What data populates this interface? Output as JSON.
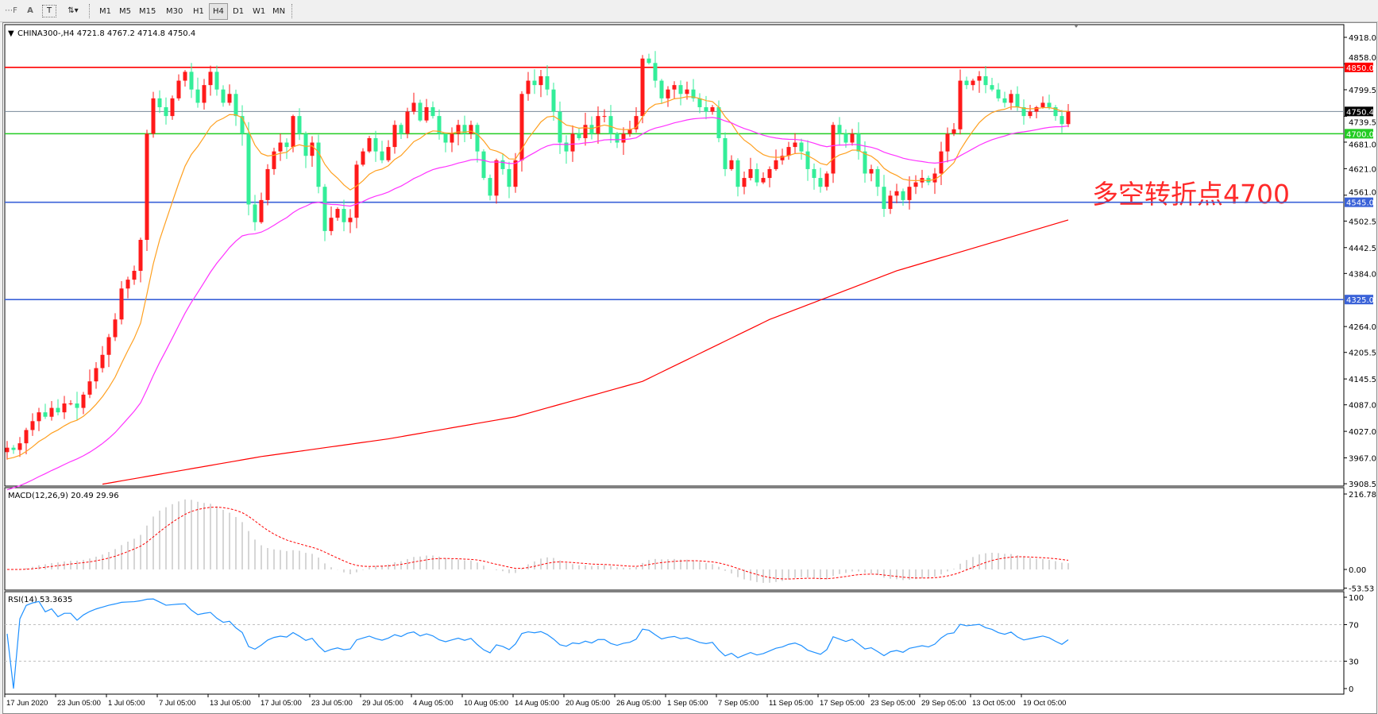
{
  "toolbar": {
    "tools": [
      {
        "name": "period-separator-tool",
        "glyph": "⋯F"
      },
      {
        "name": "text-tool",
        "glyph": "A"
      },
      {
        "name": "text-label-tool",
        "glyph": "T"
      },
      {
        "name": "arrows-tool",
        "glyph": "⇅▾"
      }
    ],
    "timeframes": [
      "M1",
      "M5",
      "M15",
      "M30",
      "H1",
      "H4",
      "D1",
      "W1",
      "MN"
    ],
    "selected_timeframe": "H4"
  },
  "chart": {
    "header": "CHINA300-,H4  4721.8 4767.2 4714.8 4750.4",
    "symbol": "CHINA300-",
    "timeframe": "H4",
    "ohlc": {
      "open": 4721.8,
      "high": 4767.2,
      "low": 4714.8,
      "close": 4750.4
    },
    "annotation": "多空转折点4700",
    "colors": {
      "bull": "#ff1a1a",
      "bear": "#33ee99",
      "ma_fast": "#ffa020",
      "ma_mid": "#ff33ff",
      "ma_slow": "#ff0000",
      "annotation": "#ff2a2a"
    }
  },
  "chart_data": [
    {
      "type": "candlestick",
      "title": "CHINA300-,H4",
      "ylim": [
        3908.5,
        4918.0
      ],
      "y_ticks": [
        "4918.0",
        "4858.0",
        "4799.5",
        "4739.5",
        "4681.0",
        "4621.0",
        "4561.0",
        "4502.5",
        "4442.5",
        "4384.0",
        "4264.0",
        "4205.5",
        "4145.5",
        "4087.0",
        "4027.0",
        "3967.0",
        "3908.5"
      ],
      "x_ticks": [
        "17 Jun 2020",
        "23 Jun 05:00",
        "1 Jul 05:00",
        "7 Jul 05:00",
        "13 Jul 05:00",
        "17 Jul 05:00",
        "23 Jul 05:00",
        "29 Jul 05:00",
        "4 Aug 05:00",
        "10 Aug 05:00",
        "14 Aug 05:00",
        "20 Aug 05:00",
        "26 Aug 05:00",
        "1 Sep 05:00",
        "7 Sep 05:00",
        "11 Sep 05:00",
        "17 Sep 05:00",
        "23 Sep 05:00",
        "29 Sep 05:00",
        "13 Oct 05:00",
        "19 Oct 05:00"
      ],
      "closes": [
        3990,
        3985,
        4000,
        4030,
        4050,
        4070,
        4060,
        4080,
        4070,
        4090,
        4090,
        4080,
        4110,
        4140,
        4170,
        4200,
        4240,
        4280,
        4350,
        4370,
        4390,
        4460,
        4700,
        4780,
        4760,
        4740,
        4780,
        4820,
        4840,
        4800,
        4770,
        4810,
        4840,
        4800,
        4770,
        4790,
        4740,
        4700,
        4540,
        4500,
        4550,
        4620,
        4660,
        4680,
        4670,
        4740,
        4700,
        4650,
        4680,
        4580,
        4480,
        4510,
        4530,
        4500,
        4510,
        4630,
        4660,
        4690,
        4660,
        4640,
        4670,
        4720,
        4700,
        4750,
        4770,
        4730,
        4760,
        4740,
        4700,
        4680,
        4700,
        4720,
        4700,
        4720,
        4660,
        4600,
        4560,
        4640,
        4620,
        4580,
        4640,
        4790,
        4820,
        4810,
        4830,
        4800,
        4750,
        4680,
        4660,
        4700,
        4690,
        4720,
        4700,
        4740,
        4740,
        4700,
        4680,
        4700,
        4710,
        4740,
        4870,
        4860,
        4820,
        4780,
        4800,
        4810,
        4790,
        4800,
        4780,
        4760,
        4750,
        4760,
        4690,
        4620,
        4640,
        4580,
        4600,
        4620,
        4590,
        4600,
        4620,
        4640,
        4650,
        4670,
        4680,
        4660,
        4620,
        4600,
        4580,
        4610,
        4720,
        4700,
        4680,
        4700,
        4660,
        4610,
        4620,
        4580,
        4530,
        4560,
        4570,
        4550,
        4580,
        4590,
        4600,
        4590,
        4610,
        4660,
        4700,
        4710,
        4820,
        4810,
        4820,
        4830,
        4810,
        4800,
        4780,
        4770,
        4790,
        4760,
        4740,
        4750,
        4760,
        4770,
        4760,
        4740,
        4721.8,
        4750.4
      ],
      "ma_slow_points": [
        [
          0,
          3870
        ],
        [
          40,
          3970
        ],
        [
          60,
          4010
        ],
        [
          80,
          4060
        ],
        [
          100,
          4140
        ],
        [
          120,
          4280
        ],
        [
          140,
          4390
        ],
        [
          167,
          4505
        ]
      ],
      "horizontal_lines": [
        {
          "value": 4850.0,
          "label": "4850.0",
          "color": "#ff0000"
        },
        {
          "value": 4750.4,
          "label": "4750.4",
          "color": "#778899",
          "current": true
        },
        {
          "value": 4700.0,
          "label": "4700.0",
          "color": "#22cc22"
        },
        {
          "value": 4545.0,
          "label": "4545.0",
          "color": "#3a62d8"
        },
        {
          "value": 4325.0,
          "label": "4325.0",
          "color": "#3a62d8"
        }
      ]
    },
    {
      "type": "bar",
      "title": "MACD(12,26,9) 20.49 29.96",
      "ylim": [
        -53.53,
        216.78
      ],
      "y_ticks": [
        "216.78",
        "0.00",
        "-53.53"
      ],
      "macd": 20.49,
      "signal": 29.96
    },
    {
      "type": "line",
      "title": "RSI(14) 53.3635",
      "ylim": [
        0,
        100
      ],
      "y_ticks": [
        "100",
        "70",
        "30",
        "0"
      ],
      "levels": [
        70,
        30
      ],
      "value": 53.3635
    }
  ]
}
